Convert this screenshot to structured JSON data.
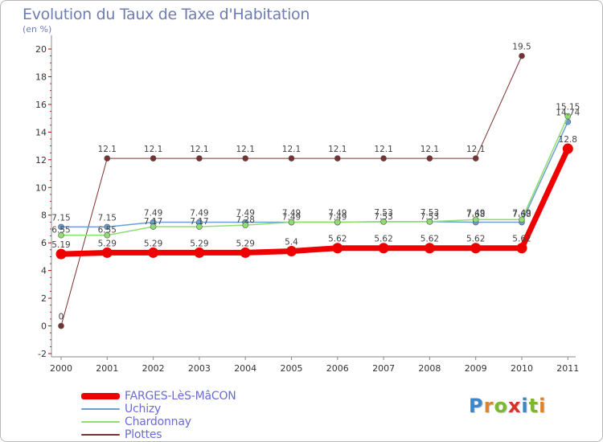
{
  "title": "Evolution du Taux de Taxe d'Habitation",
  "unit_label": "(en %)",
  "logo": {
    "letters": [
      {
        "ch": "P",
        "color": "#3a86c8"
      },
      {
        "ch": "r",
        "color": "#e0822b"
      },
      {
        "ch": "o",
        "color": "#7cb82f"
      },
      {
        "ch": "x",
        "color": "#d6312b"
      },
      {
        "ch": "i",
        "color": "#3a86c8"
      },
      {
        "ch": "t",
        "color": "#7cb82f"
      },
      {
        "ch": "i",
        "color": "#e0822b"
      }
    ]
  },
  "chart_data": {
    "type": "line",
    "title": "Evolution du Taux de Taxe d'Habitation",
    "ylabel": "(en %)",
    "xlabel": "",
    "x": [
      "2000",
      "2001",
      "2002",
      "2003",
      "2004",
      "2005",
      "2006",
      "2007",
      "2008",
      "2009",
      "2010",
      "2011"
    ],
    "ylim": [
      -2,
      21
    ],
    "yticks": [
      -2,
      0,
      2,
      4,
      6,
      8,
      10,
      12,
      14,
      16,
      18,
      20
    ],
    "grid": false,
    "legend_position": "bottom-left",
    "series": [
      {
        "name": "Plottes",
        "color": "#7b3030",
        "values": [
          0,
          12.1,
          12.1,
          12.1,
          12.1,
          12.1,
          12.1,
          12.1,
          12.1,
          12.1,
          19.5,
          null
        ],
        "labels": [
          "0",
          "12.1",
          "12.1",
          "12.1",
          "12.1",
          "12.1",
          "12.1",
          "12.1",
          "12.1",
          "12.1",
          "19.5",
          ""
        ]
      },
      {
        "name": "Uchizy",
        "color": "#6b9fd4",
        "values": [
          7.15,
          7.15,
          7.49,
          7.49,
          7.49,
          7.49,
          7.49,
          7.53,
          7.53,
          7.49,
          7.49,
          14.74
        ],
        "labels": [
          "7.15",
          "7.15",
          "7.49",
          "7.49",
          "7.49",
          "7.49",
          "7.49",
          "7.53",
          "7.53",
          "7.49",
          "7.49",
          "14.74"
        ]
      },
      {
        "name": "Chardonnay",
        "color": "#90dd70",
        "values": [
          6.55,
          6.55,
          7.17,
          7.17,
          7.28,
          7.49,
          7.49,
          7.53,
          7.53,
          7.68,
          7.68,
          15.15
        ],
        "labels": [
          "6.55",
          "6.55",
          "7.17",
          "7.17",
          "7.28",
          "7.49",
          "7.49",
          "7.53",
          "7.53",
          "7.68",
          "7.68",
          "15.15"
        ]
      },
      {
        "name": "FARGES-LèS-MâCON",
        "color": "#ee0000",
        "values": [
          5.19,
          5.29,
          5.29,
          5.29,
          5.29,
          5.4,
          5.62,
          5.62,
          5.62,
          5.62,
          5.62,
          12.8
        ],
        "labels": [
          "5.19",
          "5.29",
          "5.29",
          "5.29",
          "5.29",
          "5.4",
          "5.62",
          "5.62",
          "5.62",
          "5.62",
          "5.62",
          "12.8"
        ]
      }
    ],
    "legend_order": [
      "FARGES-LèS-MâCON",
      "Uchizy",
      "Chardonnay",
      "Plottes"
    ]
  }
}
